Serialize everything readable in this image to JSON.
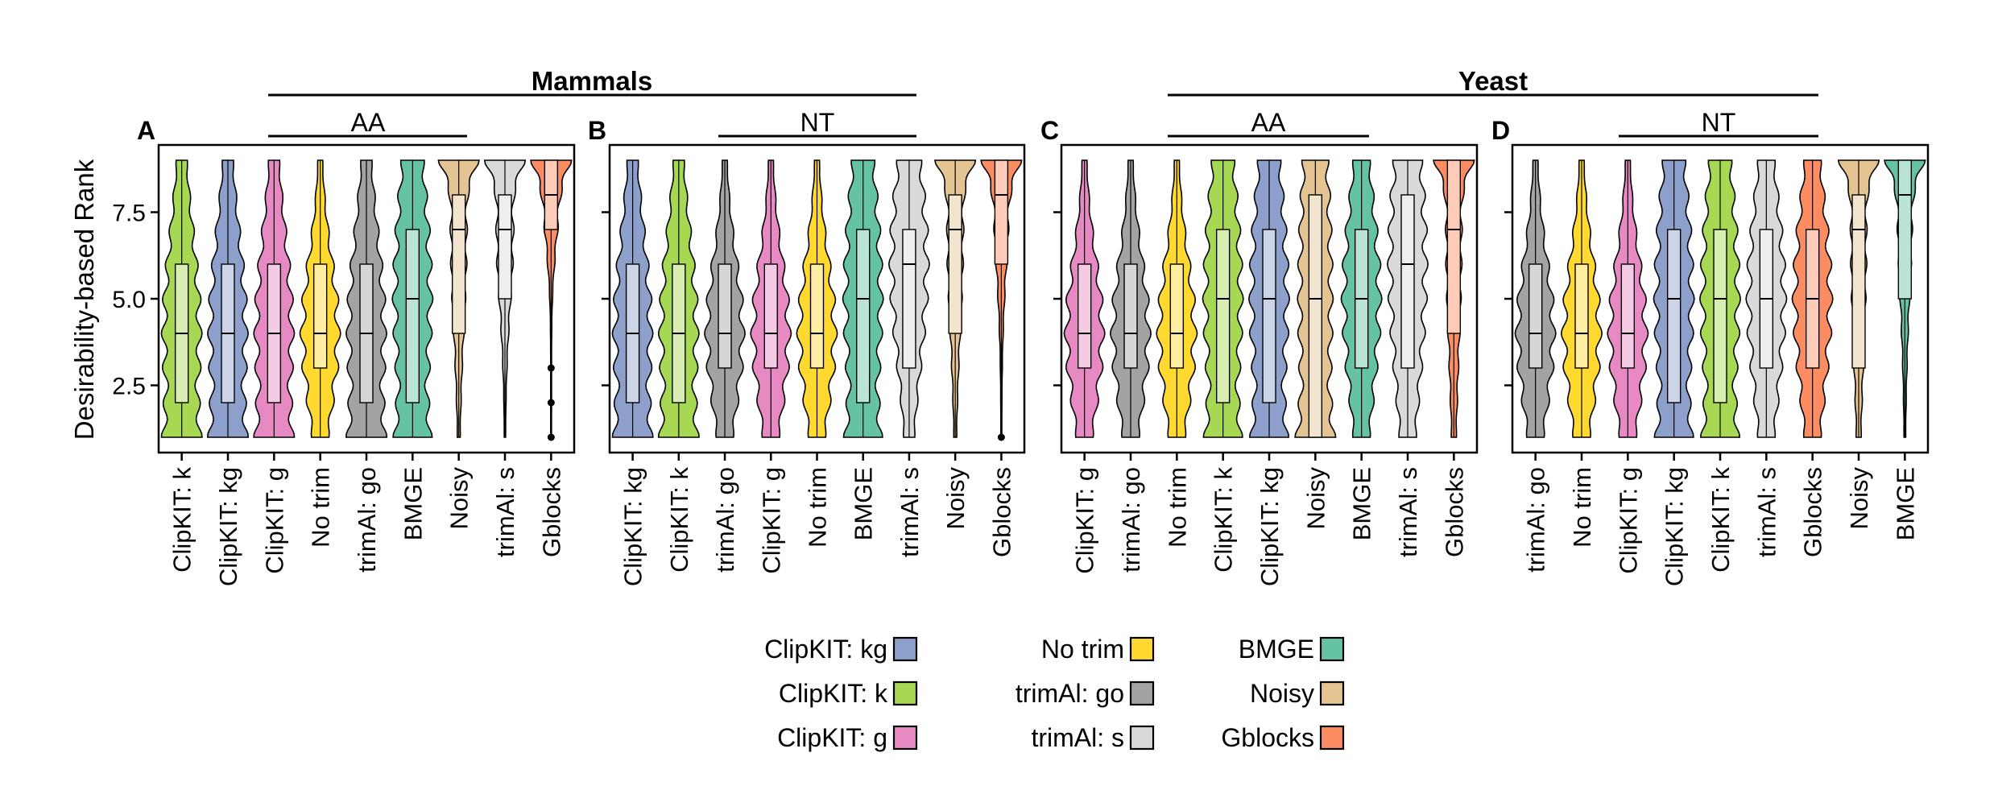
{
  "colors": {
    "ClipKIT: kg": "#8DA0CB",
    "ClipKIT: k": "#A6D854",
    "ClipKIT: g": "#E78AC3",
    "No trim": "#FFD92F",
    "trimAl: go": "#A3A3A3",
    "trimAl: s": "#D9D9D9",
    "BMGE": "#66C2A5",
    "Noisy": "#E5C494",
    "Gblocks": "#FC8D62"
  },
  "legend": {
    "columns": [
      [
        "ClipKIT: kg",
        "ClipKIT: k",
        "ClipKIT: g"
      ],
      [
        "No trim",
        "trimAl: go",
        "trimAl: s"
      ],
      [
        "BMGE",
        "Noisy",
        "Gblocks"
      ]
    ]
  },
  "groups": {
    "mammals": "Mammals",
    "yeast": "Yeast",
    "aa": "AA",
    "nt": "NT"
  },
  "chart_data": [
    {
      "type": "violin",
      "panel": "A",
      "dataset": "Mammals",
      "alphabet": "AA",
      "ylabel": "Desirability-based Rank",
      "ylim": [
        1,
        9
      ],
      "yticks": [
        2.5,
        5.0,
        7.5
      ],
      "ytick_labels": [
        "2.5",
        "5.0",
        "7.5"
      ],
      "categories": [
        "ClipKIT: k",
        "ClipKIT: kg",
        "ClipKIT: g",
        "No trim",
        "trimAl: go",
        "BMGE",
        "Noisy",
        "trimAl: s",
        "Gblocks"
      ],
      "box": [
        {
          "q1": 2,
          "median": 4,
          "q3": 6
        },
        {
          "q1": 2,
          "median": 4,
          "q3": 6
        },
        {
          "q1": 2,
          "median": 4,
          "q3": 6
        },
        {
          "q1": 3,
          "median": 4,
          "q3": 6
        },
        {
          "q1": 2,
          "median": 4,
          "q3": 6
        },
        {
          "q1": 2,
          "median": 5,
          "q3": 7
        },
        {
          "q1": 4,
          "median": 7,
          "q3": 8
        },
        {
          "q1": 5,
          "median": 7,
          "q3": 8
        },
        {
          "q1": 7,
          "median": 8,
          "q3": 9
        }
      ],
      "outliers": [
        [],
        [],
        [],
        [],
        [],
        [],
        [],
        [],
        [
          1,
          2,
          3
        ]
      ]
    },
    {
      "type": "violin",
      "panel": "B",
      "dataset": "Mammals",
      "alphabet": "NT",
      "ylim": [
        1,
        9
      ],
      "categories": [
        "ClipKIT: kg",
        "ClipKIT: k",
        "trimAl: go",
        "ClipKIT: g",
        "No trim",
        "BMGE",
        "trimAl: s",
        "Noisy",
        "Gblocks"
      ],
      "box": [
        {
          "q1": 2,
          "median": 4,
          "q3": 6
        },
        {
          "q1": 2,
          "median": 4,
          "q3": 6
        },
        {
          "q1": 3,
          "median": 4,
          "q3": 6
        },
        {
          "q1": 3,
          "median": 4,
          "q3": 6
        },
        {
          "q1": 3,
          "median": 4,
          "q3": 6
        },
        {
          "q1": 2,
          "median": 5,
          "q3": 7
        },
        {
          "q1": 3,
          "median": 6,
          "q3": 7
        },
        {
          "q1": 4,
          "median": 7,
          "q3": 8
        },
        {
          "q1": 6,
          "median": 8,
          "q3": 9
        }
      ],
      "outliers": [
        [],
        [],
        [],
        [],
        [],
        [],
        [],
        [],
        [
          1
        ]
      ]
    },
    {
      "type": "violin",
      "panel": "C",
      "dataset": "Yeast",
      "alphabet": "AA",
      "ylim": [
        1,
        9
      ],
      "categories": [
        "ClipKIT: g",
        "trimAl: go",
        "No trim",
        "ClipKIT: k",
        "ClipKIT: kg",
        "Noisy",
        "BMGE",
        "trimAl: s",
        "Gblocks"
      ],
      "box": [
        {
          "q1": 3,
          "median": 4,
          "q3": 6
        },
        {
          "q1": 3,
          "median": 4,
          "q3": 6
        },
        {
          "q1": 3,
          "median": 4,
          "q3": 6
        },
        {
          "q1": 2,
          "median": 5,
          "q3": 7
        },
        {
          "q1": 2,
          "median": 5,
          "q3": 7
        },
        {
          "q1": 1,
          "median": 5,
          "q3": 8
        },
        {
          "q1": 3,
          "median": 5,
          "q3": 7
        },
        {
          "q1": 3,
          "median": 6,
          "q3": 8
        },
        {
          "q1": 4,
          "median": 7,
          "q3": 9
        }
      ],
      "outliers": [
        [],
        [],
        [],
        [],
        [],
        [],
        [],
        [],
        []
      ]
    },
    {
      "type": "violin",
      "panel": "D",
      "dataset": "Yeast",
      "alphabet": "NT",
      "ylim": [
        1,
        9
      ],
      "categories": [
        "trimAl: go",
        "No trim",
        "ClipKIT: g",
        "ClipKIT: kg",
        "ClipKIT: k",
        "trimAl: s",
        "Gblocks",
        "Noisy",
        "BMGE"
      ],
      "box": [
        {
          "q1": 3,
          "median": 4,
          "q3": 6
        },
        {
          "q1": 3,
          "median": 4,
          "q3": 6
        },
        {
          "q1": 3,
          "median": 4,
          "q3": 6
        },
        {
          "q1": 2,
          "median": 5,
          "q3": 7
        },
        {
          "q1": 2,
          "median": 5,
          "q3": 7
        },
        {
          "q1": 3,
          "median": 5,
          "q3": 7
        },
        {
          "q1": 3,
          "median": 5,
          "q3": 7
        },
        {
          "q1": 3,
          "median": 7,
          "q3": 8
        },
        {
          "q1": 5,
          "median": 8,
          "q3": 9
        }
      ],
      "outliers": [
        [],
        [],
        [],
        [],
        [],
        [],
        [],
        [],
        []
      ]
    }
  ]
}
